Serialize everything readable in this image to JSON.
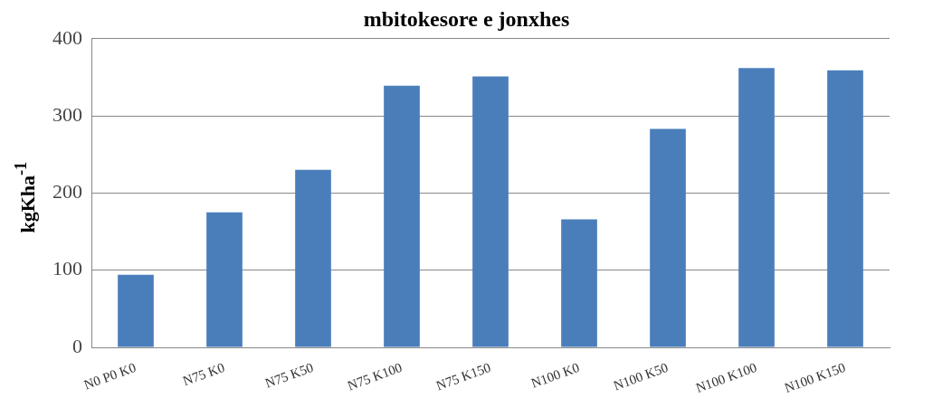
{
  "chart_data": {
    "type": "bar",
    "title": "mbitokesore e jonxhes",
    "ylabel": "kgKha$^{-1}$",
    "categories": [
      "N0 P0 K0",
      "N75 K0",
      "N75 K50",
      "N75 K100",
      "N75 K150",
      "N100 K0",
      "N100 K50",
      "N100 K100",
      "N100 K150"
    ],
    "values": [
      94,
      175,
      230,
      339,
      351,
      166,
      283,
      362,
      359
    ],
    "color": "#4a7ebb",
    "ylim": [
      0,
      400
    ],
    "yticks": [
      0,
      100,
      200,
      300,
      400
    ],
    "grid": "y",
    "legend": false
  }
}
